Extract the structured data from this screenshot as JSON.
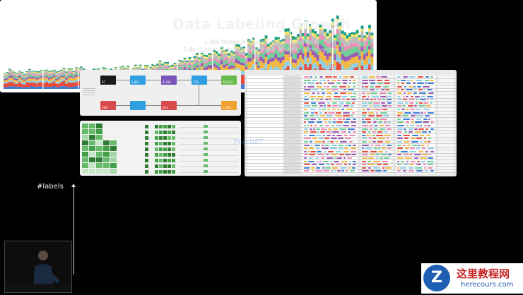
{
  "slide": {
    "title": "Data Labeling Growth",
    "subtitle_1": "1,000-Person In-House Data Labeling Team",
    "subtitle_2": "Fully Custom Built Data Labeling & Analytics Infrastructure",
    "y_axis_label": "#labels"
  },
  "flow_panel": {
    "nodes": [
      {
        "value": "97",
        "color": "#1a1a1a"
      },
      {
        "value": "1,851",
        "color": "#2f9fe0"
      },
      {
        "value": "4,309",
        "color": "#7a54b8"
      },
      {
        "value": "178",
        "color": "#2f9fe0"
      },
      {
        "value": "18,234",
        "color": "#6aba4c"
      },
      {
        "value": "498",
        "color": "#d94a4a"
      },
      {
        "value": "",
        "color": "#2f9fe0"
      },
      {
        "value": "261",
        "color": "#d94a4a"
      },
      {
        "value": "1,064",
        "color": "#f0a030"
      }
    ]
  },
  "colors": {
    "chart_series": [
      "#3b7dd8",
      "#e84c3d",
      "#8fd0e6",
      "#f4b942",
      "#9b59b6",
      "#6fcf97",
      "#f08ab4",
      "#bdbdbd",
      "#f5e663",
      "#1f9e89"
    ],
    "tags": [
      "#f4b942",
      "#3b7dd8",
      "#6fcf97",
      "#e84c3d",
      "#9b59b6",
      "#8fd0e6",
      "#f08ab4"
    ]
  },
  "watermark": {
    "logo": "Z",
    "site_cn": "这里教程网",
    "site_url": "herecours.com",
    "overlay": "Php NET"
  }
}
